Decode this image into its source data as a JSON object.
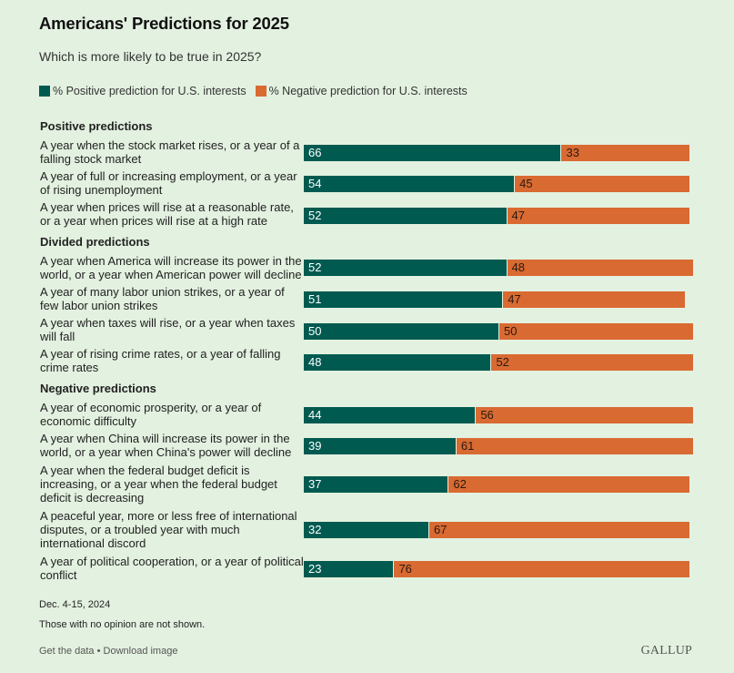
{
  "colors": {
    "background": "#e3f1e0",
    "positive": "#005a50",
    "negative": "#d96a32"
  },
  "chart_data": {
    "type": "bar",
    "orientation": "horizontal-stacked",
    "title": "Americans' Predictions for 2025",
    "subtitle": "Which is more likely to be true in 2025?",
    "xlabel": "",
    "ylabel": "",
    "xlim": [
      0,
      100
    ],
    "grid": false,
    "legend_position": "top-left",
    "legend": [
      {
        "name": "% Positive prediction for U.S. interests",
        "color": "#005a50"
      },
      {
        "name": "% Negative prediction for U.S. interests",
        "color": "#d96a32"
      }
    ],
    "groups": [
      {
        "header": "Positive predictions",
        "rows": [
          {
            "label": "A year when the stock market rises, or a year of a falling stock market",
            "positive": 66,
            "negative": 33
          },
          {
            "label": "A year of full or increasing employment, or a year of rising unemployment",
            "positive": 54,
            "negative": 45
          },
          {
            "label": "A year when prices will rise at a reasonable rate, or a year when prices will rise at a high rate",
            "positive": 52,
            "negative": 47
          }
        ]
      },
      {
        "header": "Divided predictions",
        "rows": [
          {
            "label": "A year when America will increase its power in the world, or a year when American power will decline",
            "positive": 52,
            "negative": 48
          },
          {
            "label": "A year of many labor union strikes, or a year of few labor union strikes",
            "positive": 51,
            "negative": 47
          },
          {
            "label": "A year when taxes will rise, or a year when taxes will fall",
            "positive": 50,
            "negative": 50
          },
          {
            "label": "A year of rising crime rates, or a year of falling crime rates",
            "positive": 48,
            "negative": 52
          }
        ]
      },
      {
        "header": "Negative predictions",
        "rows": [
          {
            "label": "A year of economic prosperity, or a year of economic difficulty",
            "positive": 44,
            "negative": 56
          },
          {
            "label": "A year when China will increase its power in the world, or a year when China's power will decline",
            "positive": 39,
            "negative": 61
          },
          {
            "label": "A year when the federal budget deficit is increasing, or a year when the federal budget deficit is decreasing",
            "positive": 37,
            "negative": 62
          },
          {
            "label": "A peaceful year, more or less free of international disputes, or a troubled year with much international discord",
            "positive": 32,
            "negative": 67
          },
          {
            "label": "A year of political cooperation, or a year of political conflict",
            "positive": 23,
            "negative": 76
          }
        ]
      }
    ]
  },
  "footer": {
    "date": "Dec. 4-15, 2024",
    "note": "Those with no opinion are not shown.",
    "get_data": "Get the data",
    "separator": " • ",
    "download": "Download image",
    "brand": "GALLUP"
  }
}
